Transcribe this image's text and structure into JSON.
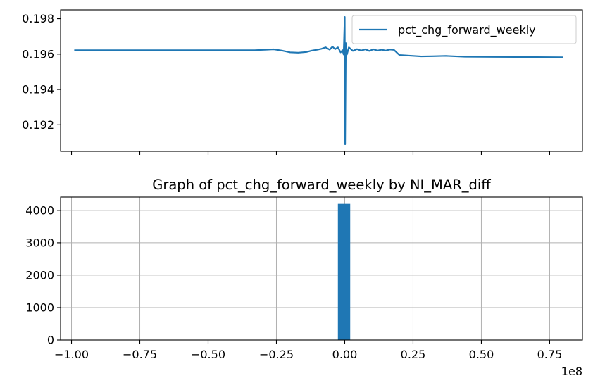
{
  "chart_data": [
    {
      "type": "line",
      "title": "",
      "xlabel": "",
      "ylabel": "",
      "ylim": [
        0.1905,
        0.1985
      ],
      "xlim": [
        -104000000,
        87000000
      ],
      "x_unit_scale": 100000000,
      "legend": "top-right",
      "grid": false,
      "yticks": [
        {
          "value": 0.192,
          "label": "0.192"
        },
        {
          "value": 0.194,
          "label": "0.194"
        },
        {
          "value": 0.196,
          "label": "0.196"
        },
        {
          "value": 0.198,
          "label": "0.198"
        }
      ],
      "series": [
        {
          "name": "pct_chg_forward_weekly",
          "color": "#1f77b4",
          "x": [
            -99000000,
            -90000000,
            -80000000,
            -70000000,
            -60000000,
            -50000000,
            -40000000,
            -33000000,
            -26000000,
            -23000000,
            -20000000,
            -17000000,
            -14000000,
            -12000000,
            -10000000,
            -8500000,
            -7000000,
            -5500000,
            -4500000,
            -3500000,
            -2500000,
            -1500000,
            -800000,
            -400000,
            0,
            150000,
            400000,
            800000,
            1500000,
            3000000,
            4500000,
            6000000,
            7500000,
            9000000,
            10500000,
            12000000,
            13500000,
            15000000,
            16500000,
            18000000,
            20000000,
            25000000,
            28000000,
            32000000,
            37000000,
            44000000,
            55000000,
            70000000,
            80000000
          ],
          "values": [
            0.19622,
            0.19622,
            0.19622,
            0.19622,
            0.19622,
            0.19622,
            0.19622,
            0.19622,
            0.19627,
            0.1962,
            0.1961,
            0.19608,
            0.19612,
            0.1962,
            0.19625,
            0.1963,
            0.19638,
            0.19625,
            0.19642,
            0.19628,
            0.19638,
            0.1961,
            0.19622,
            0.19598,
            0.1981,
            0.1909,
            0.19662,
            0.19598,
            0.19638,
            0.19618,
            0.19628,
            0.1962,
            0.19627,
            0.19618,
            0.19627,
            0.1962,
            0.19625,
            0.1962,
            0.19626,
            0.19624,
            0.19595,
            0.1959,
            0.19587,
            0.19588,
            0.1959,
            0.19585,
            0.19584,
            0.19583,
            0.19582
          ]
        }
      ]
    },
    {
      "type": "bar",
      "title": "Graph of pct_chg_forward_weekly by NI_MAR_diff",
      "xlabel": "",
      "ylabel": "",
      "ylim": [
        0,
        4410
      ],
      "xlim": [
        -104000000,
        87000000
      ],
      "x_unit_scale": 100000000,
      "grid": true,
      "offset_label": "1e8",
      "yticks": [
        {
          "value": 0,
          "label": "0"
        },
        {
          "value": 1000,
          "label": "1000"
        },
        {
          "value": 2000,
          "label": "2000"
        },
        {
          "value": 3000,
          "label": "3000"
        },
        {
          "value": 4000,
          "label": "4000"
        }
      ],
      "xticks": [
        {
          "value": -100000000,
          "label": "−1.00"
        },
        {
          "value": -75000000,
          "label": "−0.75"
        },
        {
          "value": -50000000,
          "label": "−0.50"
        },
        {
          "value": -25000000,
          "label": "−0.25"
        },
        {
          "value": 0,
          "label": "0.00"
        },
        {
          "value": 25000000,
          "label": "0.25"
        },
        {
          "value": 50000000,
          "label": "0.50"
        },
        {
          "value": 75000000,
          "label": "0.75"
        }
      ],
      "series": [
        {
          "color": "#1f77b4",
          "bins": [
            {
              "x0": -2500000,
              "x1": 2000000,
              "value": 4200
            }
          ]
        }
      ]
    }
  ]
}
